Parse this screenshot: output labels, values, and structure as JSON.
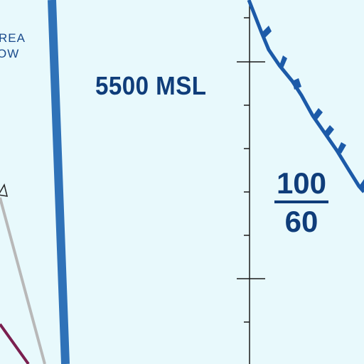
{
  "map": {
    "area_label_line1": "REA",
    "area_label_line2": "OW",
    "altitude_label": "5500 MSL",
    "ceiling": "100",
    "floor": "60"
  },
  "colors": {
    "background": "#e8f9fc",
    "airway_blue": "#2f72b8",
    "label_blue": "#0f3d7a",
    "boundary_blue": "#1c5aa8",
    "grey_line": "#b8b8b8",
    "maroon_line": "#7a1f4f"
  }
}
